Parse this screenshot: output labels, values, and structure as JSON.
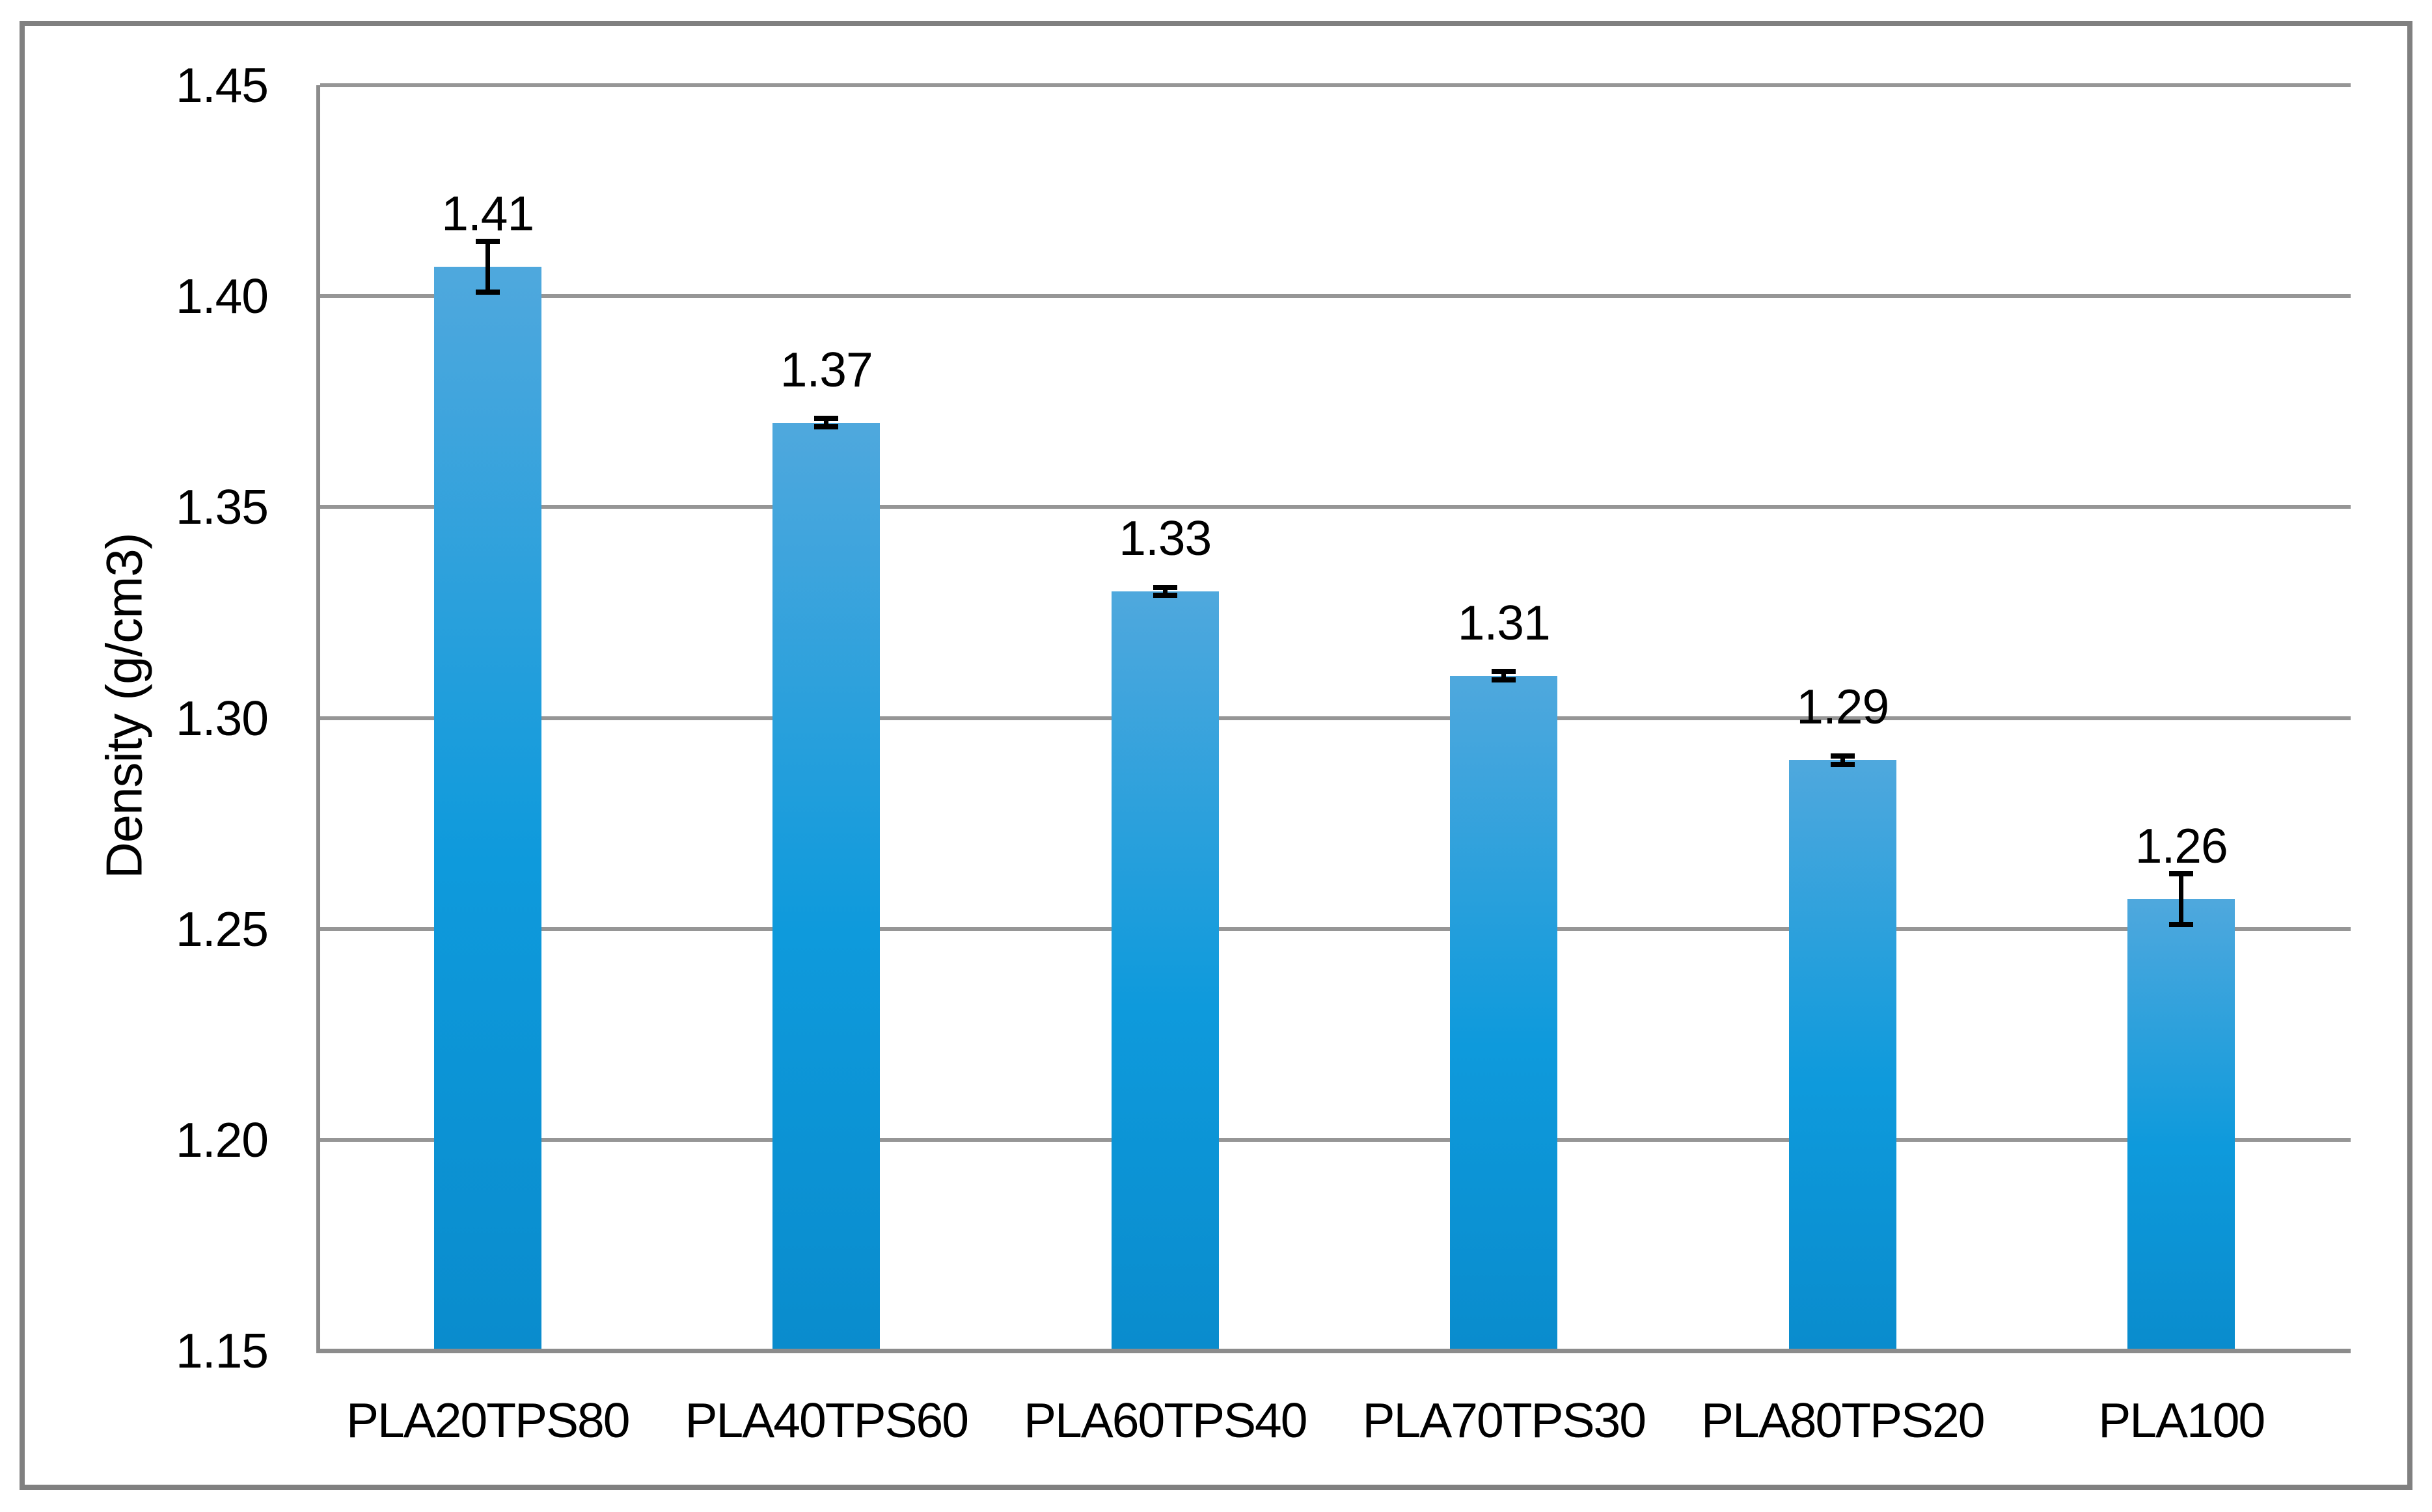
{
  "chart_data": {
    "type": "bar",
    "title": "",
    "categories": [
      "PLA20TPS80",
      "PLA40TPS60",
      "PLA60TPS40",
      "PLA70TPS30",
      "PLA80TPS20",
      "PLA100"
    ],
    "values": [
      1.407,
      1.37,
      1.33,
      1.31,
      1.29,
      1.257
    ],
    "data_labels": [
      "1.41",
      "1.37",
      "1.33",
      "1.31",
      "1.29",
      "1.26"
    ],
    "errors": [
      0.006,
      0.001,
      0.001,
      0.001,
      0.001,
      0.006
    ],
    "xlabel": "",
    "ylabel": "Density (g/cm3)",
    "ylim": [
      1.15,
      1.45
    ],
    "ytick_step": 0.05,
    "yticks": [
      "1.45",
      "1.40",
      "1.35",
      "1.30",
      "1.25",
      "1.20",
      "1.15"
    ],
    "grid": true,
    "legend": "none",
    "colors": {
      "bar_top": "#4FA8DD",
      "bar_mid": "#0E9ADC",
      "bar_bottom": "#0A8CCD",
      "gridline": "#969696",
      "axis": "#8C8C8C",
      "frame": "#808080",
      "error_bar": "#000000",
      "text": "#000000"
    }
  }
}
